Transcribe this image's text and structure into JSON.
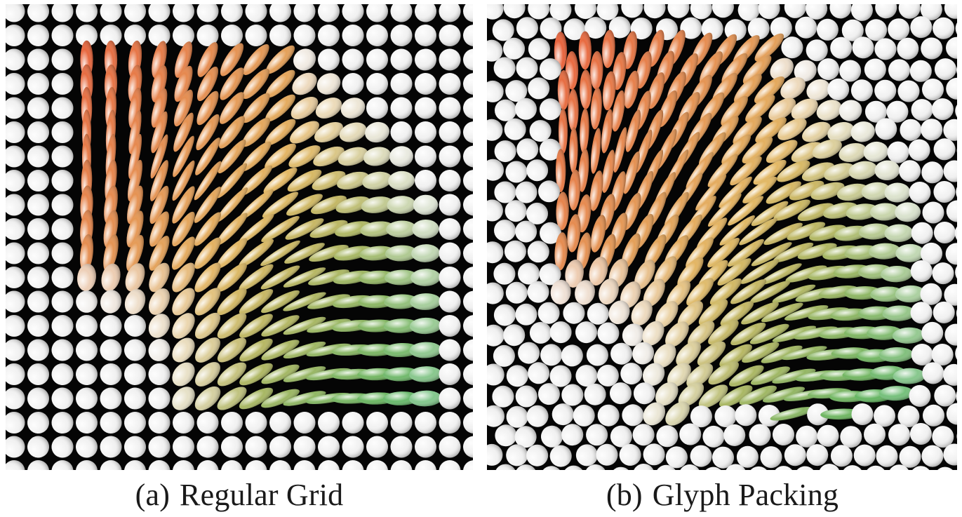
{
  "figure": {
    "panels": [
      {
        "id": "a",
        "tag": "(a)",
        "caption": "Regular Grid",
        "layout": "regular-grid",
        "background": "#050505"
      },
      {
        "id": "b",
        "tag": "(b)",
        "caption": "Glyph Packing",
        "layout": "packed",
        "background": "#050505"
      }
    ],
    "colors": {
      "isotropic": "#f2f2f2",
      "field_start": "#e8623c",
      "field_mid": "#e3b864",
      "field_end": "#52b562"
    }
  }
}
